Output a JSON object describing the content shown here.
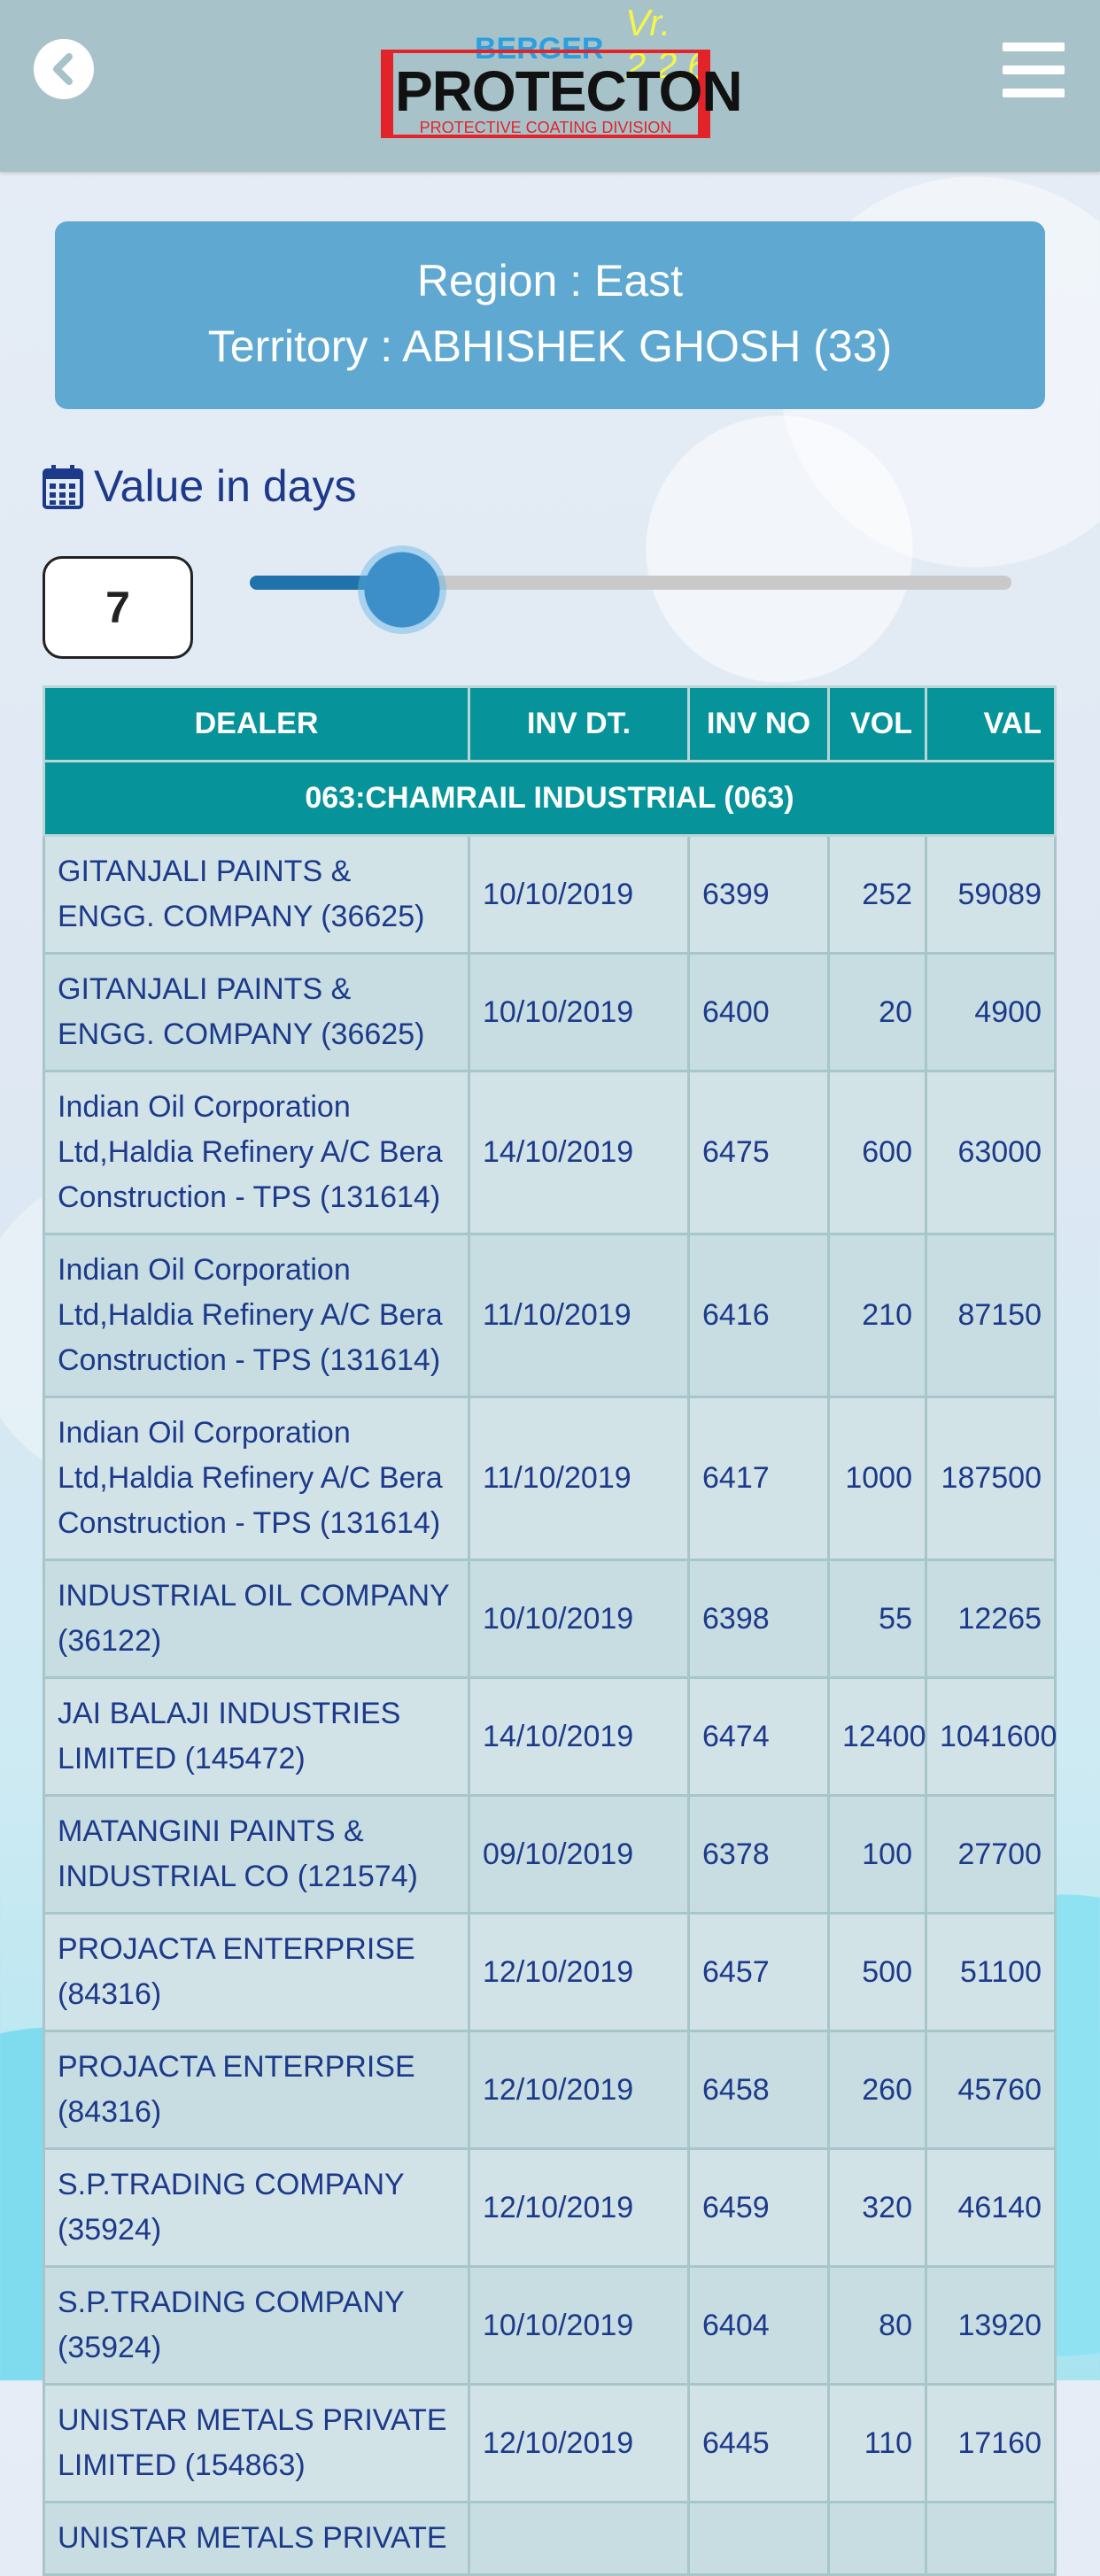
{
  "header": {
    "brand_top": "BERGER",
    "version": "Vr. 2.2.6",
    "brand_main": "PROTECTON",
    "division": "PROTECTIVE COATING DIVISION"
  },
  "region": {
    "region_line": "Region : East",
    "territory_line": "Territory : ABHISHEK GHOSH (33)"
  },
  "days": {
    "label": "Value in days",
    "value": "7",
    "slider_fraction": 0.2
  },
  "table": {
    "columns": [
      "DEALER",
      "INV DT.",
      "INV NO",
      "VOL",
      "VAL"
    ],
    "group": "063:CHAMRAIL INDUSTRIAL (063)",
    "rows": [
      {
        "dealer": "GITANJALI PAINTS & ENGG. COMPANY (36625)",
        "date": "10/10/2019",
        "inv": "6399",
        "vol": "252",
        "val": "59089"
      },
      {
        "dealer": "GITANJALI PAINTS & ENGG. COMPANY (36625)",
        "date": "10/10/2019",
        "inv": "6400",
        "vol": "20",
        "val": "4900"
      },
      {
        "dealer": "Indian Oil Corporation Ltd,Haldia Refinery A/C Bera Construction - TPS (131614)",
        "date": "14/10/2019",
        "inv": "6475",
        "vol": "600",
        "val": "63000"
      },
      {
        "dealer": "Indian Oil Corporation Ltd,Haldia Refinery A/C Bera Construction - TPS (131614)",
        "date": "11/10/2019",
        "inv": "6416",
        "vol": "210",
        "val": "87150"
      },
      {
        "dealer": "Indian Oil Corporation Ltd,Haldia Refinery A/C Bera Construction - TPS (131614)",
        "date": "11/10/2019",
        "inv": "6417",
        "vol": "1000",
        "val": "187500"
      },
      {
        "dealer": "INDUSTRIAL OIL COMPANY (36122)",
        "date": "10/10/2019",
        "inv": "6398",
        "vol": "55",
        "val": "12265"
      },
      {
        "dealer": "JAI BALAJI INDUSTRIES LIMITED (145472)",
        "date": "14/10/2019",
        "inv": "6474",
        "vol": "12400",
        "val": "1041600"
      },
      {
        "dealer": "MATANGINI PAINTS & INDUSTRIAL CO (121574)",
        "date": "09/10/2019",
        "inv": "6378",
        "vol": "100",
        "val": "27700"
      },
      {
        "dealer": "PROJACTA ENTERPRISE (84316)",
        "date": "12/10/2019",
        "inv": "6457",
        "vol": "500",
        "val": "51100"
      },
      {
        "dealer": "PROJACTA ENTERPRISE (84316)",
        "date": "12/10/2019",
        "inv": "6458",
        "vol": "260",
        "val": "45760"
      },
      {
        "dealer": "S.P.TRADING COMPANY (35924)",
        "date": "12/10/2019",
        "inv": "6459",
        "vol": "320",
        "val": "46140"
      },
      {
        "dealer": "S.P.TRADING COMPANY (35924)",
        "date": "10/10/2019",
        "inv": "6404",
        "vol": "80",
        "val": "13920"
      },
      {
        "dealer": "UNISTAR METALS PRIVATE LIMITED (154863)",
        "date": "12/10/2019",
        "inv": "6445",
        "vol": "110",
        "val": "17160"
      },
      {
        "dealer": "UNISTAR METALS PRIVATE",
        "date": "",
        "inv": "",
        "vol": "",
        "val": ""
      }
    ]
  }
}
